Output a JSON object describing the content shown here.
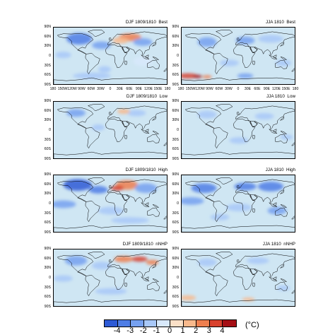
{
  "panels": [
    {
      "id": "djf-best",
      "title": "DJF 1809/1810  Best",
      "show_xlabels": true
    },
    {
      "id": "jja-best",
      "title": "JJA 1810  Best",
      "show_xlabels": true
    },
    {
      "id": "djf-low",
      "title": "DJF 1809/1810  Low",
      "show_xlabels": false
    },
    {
      "id": "jja-low",
      "title": "JJA 1810  Low",
      "show_xlabels": false
    },
    {
      "id": "djf-high",
      "title": "DJF 1809/1810  High",
      "show_xlabels": false
    },
    {
      "id": "jja-high",
      "title": "JJA 1810  High",
      "show_xlabels": false
    },
    {
      "id": "djf-nnhp",
      "title": "DJF 1809/1810  nNHP",
      "show_xlabels": false
    },
    {
      "id": "jja-nnhp",
      "title": "JJA 1810  nNHP",
      "show_xlabels": false
    }
  ],
  "lat_labels": [
    "90N",
    "60N",
    "30N",
    "0",
    "30S",
    "60S",
    "90S"
  ],
  "lon_labels": [
    "180",
    "150W",
    "120W",
    "90W",
    "60W",
    "30W",
    "0",
    "30E",
    "60E",
    "90E",
    "120E",
    "150E",
    "180"
  ],
  "colorbar": {
    "labels": [
      "-4",
      "-3",
      "-2",
      "-1",
      "0",
      "1",
      "2",
      "3",
      "4"
    ],
    "colors": [
      "#2e5bd6",
      "#4f7ee6",
      "#76a1f0",
      "#a8c8f8",
      "#d8e9fb",
      "#fbe0c7",
      "#f8b98c",
      "#ee7f4f",
      "#d8412d",
      "#a50f15"
    ],
    "unit": "(°C)"
  },
  "colors": {
    "base_anomaly": "#cfe6f3",
    "coastline": "#000000"
  }
}
